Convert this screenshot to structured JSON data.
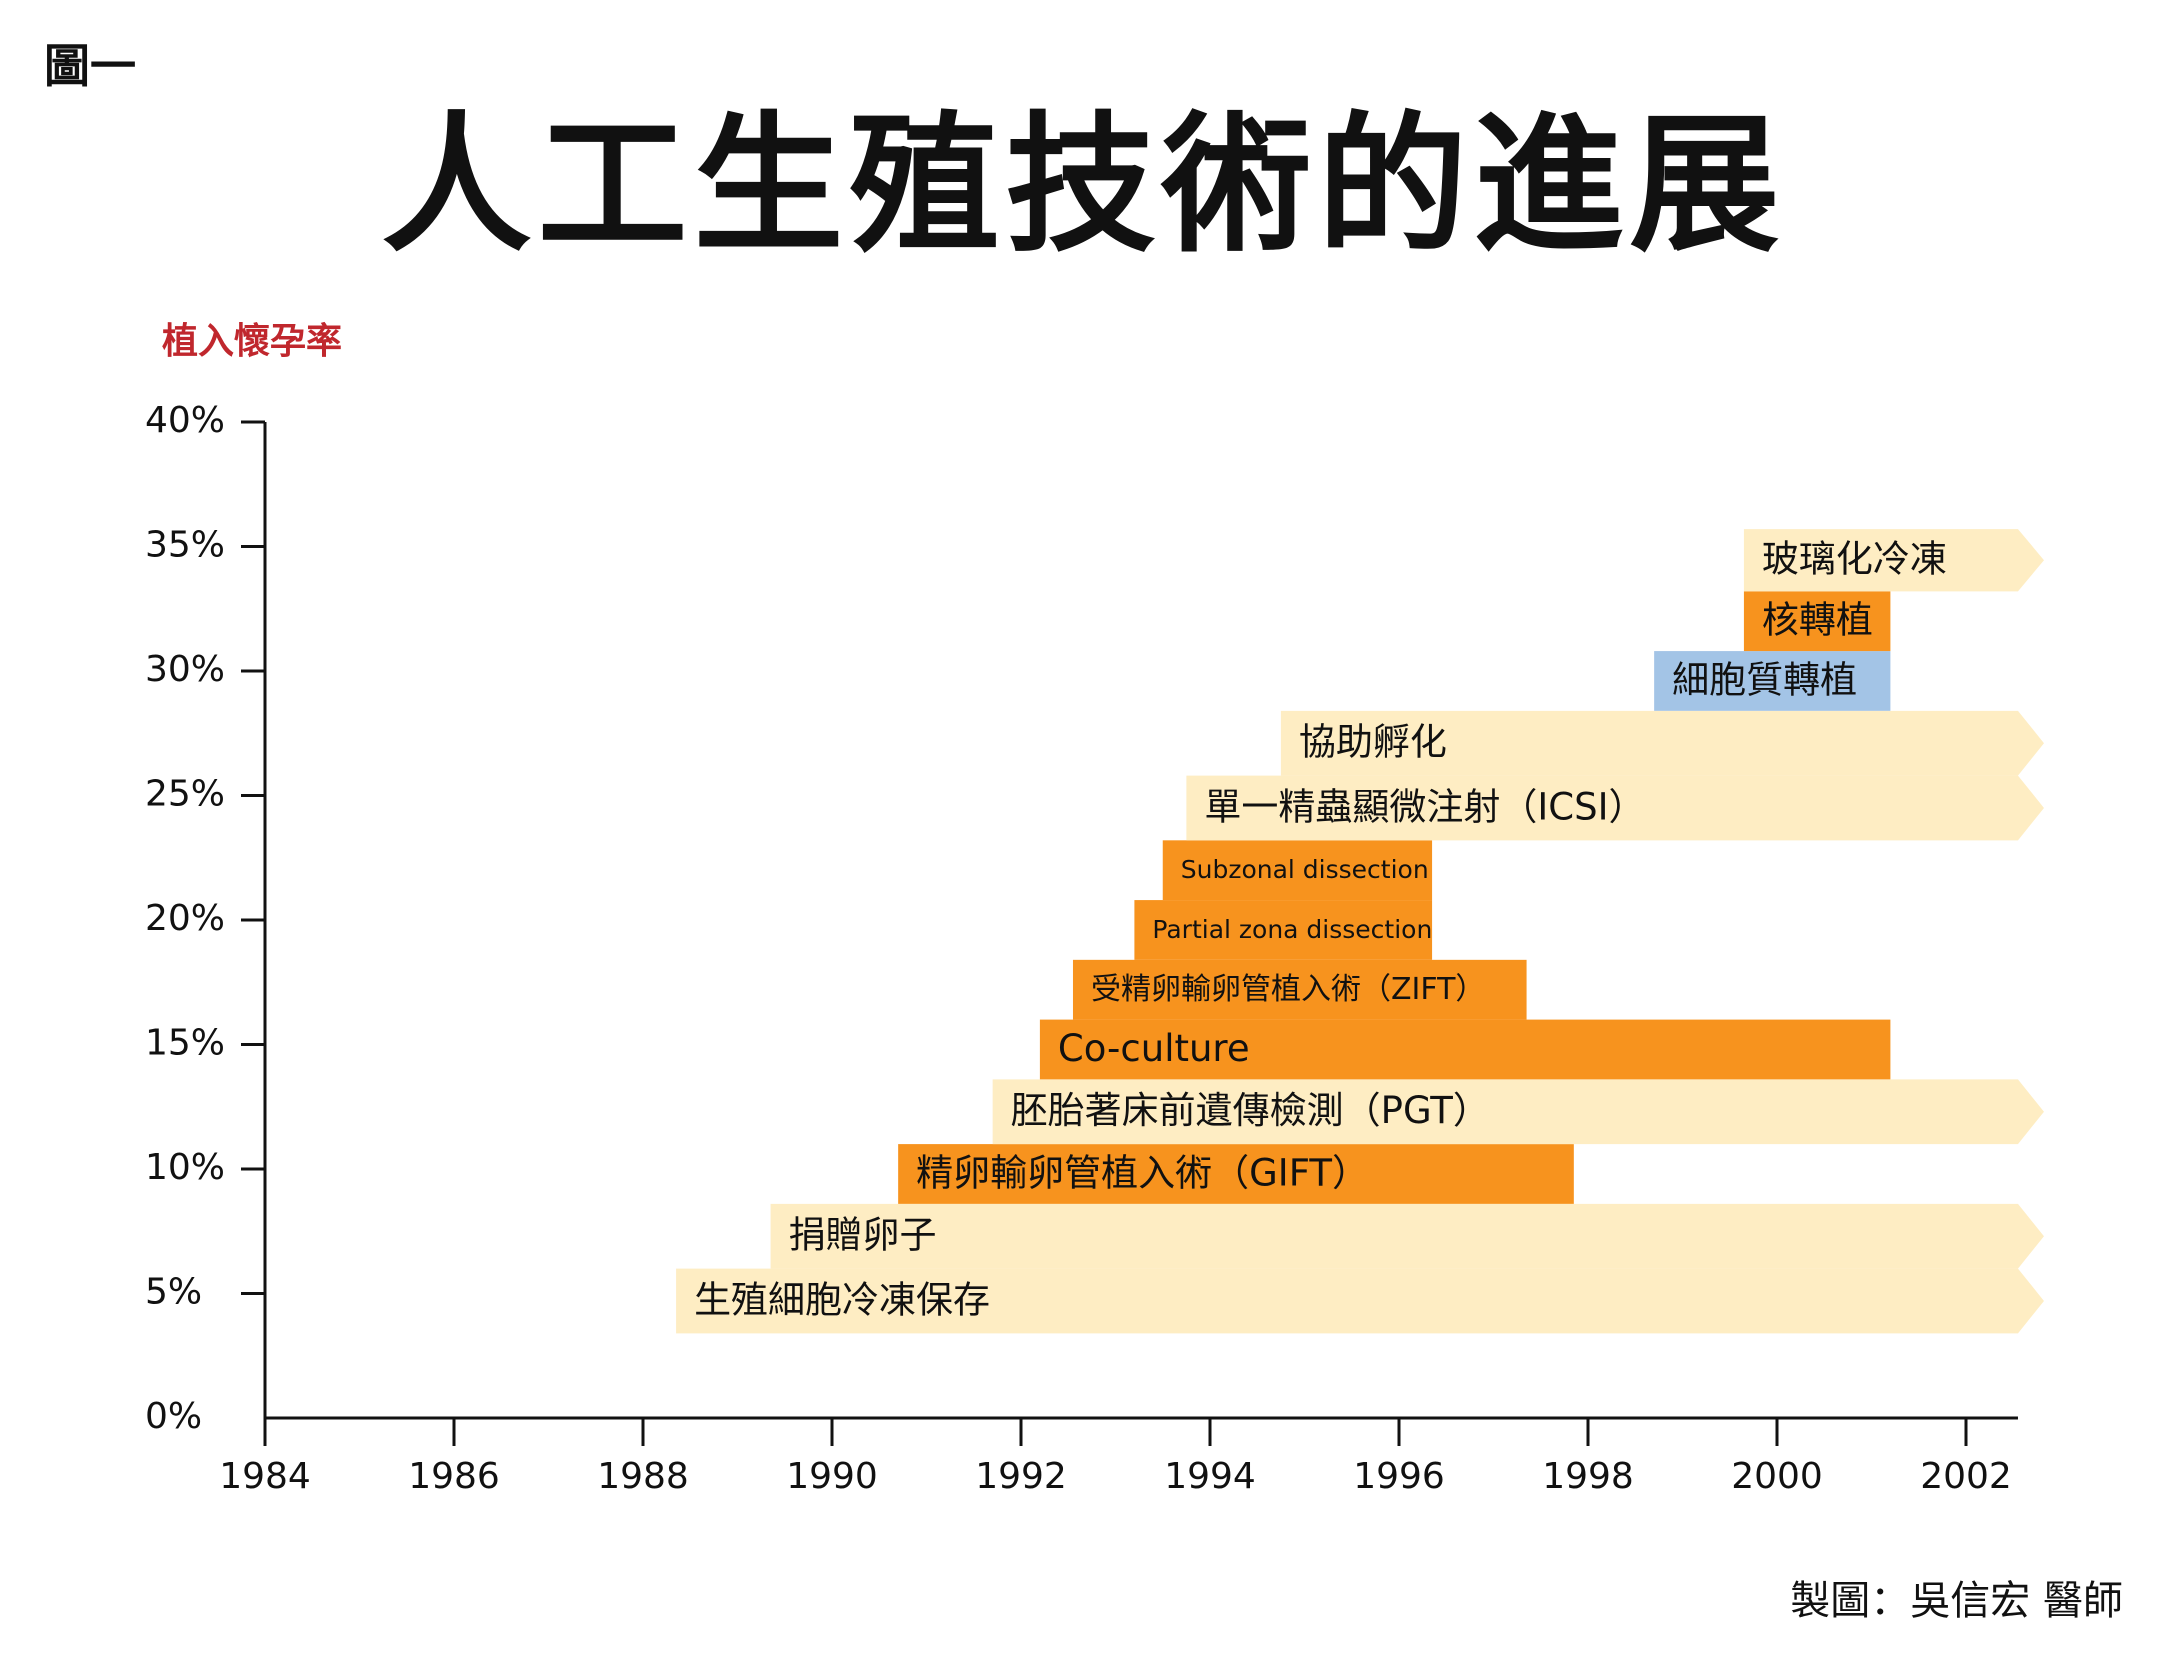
{
  "figure_label": "圖一",
  "credit": "製圖：吳信宏 醫師",
  "colors": {
    "light": "#feedc3",
    "orange": "#f7931e",
    "blue": "#a3c4e6",
    "title_red": "#c0272d",
    "axis": "#111111"
  },
  "chart_data": {
    "type": "timeline-bar",
    "title": "人工生殖技術的進展",
    "ylabel": "植入懷孕率",
    "xlabel": "",
    "xlim": [
      1984,
      2002.55
    ],
    "ylim": [
      0,
      40
    ],
    "x_ticks": [
      1984,
      1986,
      1988,
      1990,
      1992,
      1994,
      1996,
      1998,
      2000,
      2002
    ],
    "x_tick_labels": [
      "1984",
      "1986",
      "1988",
      "1990",
      "1992",
      "1994",
      "1996",
      "1998",
      "2000",
      "2002"
    ],
    "y_ticks": [
      0,
      5,
      10,
      15,
      20,
      25,
      30,
      35,
      40
    ],
    "y_tick_labels": [
      "0%",
      "5%",
      "10%",
      "15%",
      "20%",
      "25%",
      "30%",
      "35%",
      "40%"
    ],
    "grid": false,
    "legend": "none",
    "bars": [
      {
        "label": "生殖細胞冷凍保存",
        "start": 1988.35,
        "end": 2002.55,
        "y_low": 3.4,
        "y_high": 6.0,
        "color": "light",
        "ongoing": true,
        "label_size": "large"
      },
      {
        "label": "捐贈卵子",
        "start": 1989.35,
        "end": 2002.55,
        "y_low": 6.0,
        "y_high": 8.6,
        "color": "light",
        "ongoing": true,
        "label_size": "large"
      },
      {
        "label": "精卵輸卵管植入術（GIFT）",
        "start": 1990.7,
        "end": 1997.85,
        "y_low": 8.6,
        "y_high": 11.0,
        "color": "orange",
        "ongoing": false,
        "label_size": "large"
      },
      {
        "label": "胚胎著床前遺傳檢測（PGT）",
        "start": 1991.7,
        "end": 2002.55,
        "y_low": 11.0,
        "y_high": 13.6,
        "color": "light",
        "ongoing": true,
        "label_size": "large"
      },
      {
        "label": "Co-culture",
        "start": 1992.2,
        "end": 2001.2,
        "y_low": 13.6,
        "y_high": 16.0,
        "color": "orange",
        "ongoing": false,
        "label_size": "large"
      },
      {
        "label": "受精卵輸卵管植入術（ZIFT）",
        "start": 1992.55,
        "end": 1997.35,
        "y_low": 16.0,
        "y_high": 18.4,
        "color": "orange",
        "ongoing": false,
        "label_size": "medium"
      },
      {
        "label": "Partial zona dissection",
        "start": 1993.2,
        "end": 1996.35,
        "y_low": 18.4,
        "y_high": 20.8,
        "color": "orange",
        "ongoing": false,
        "label_size": "small"
      },
      {
        "label": "Subzonal dissection",
        "start": 1993.5,
        "end": 1996.35,
        "y_low": 20.8,
        "y_high": 23.2,
        "color": "orange",
        "ongoing": false,
        "label_size": "small"
      },
      {
        "label": "單一精蟲顯微注射（ICSI）",
        "start": 1993.75,
        "end": 2002.55,
        "y_low": 23.2,
        "y_high": 25.8,
        "color": "light",
        "ongoing": true,
        "label_size": "large"
      },
      {
        "label": "協助孵化",
        "start": 1994.75,
        "end": 2002.55,
        "y_low": 25.8,
        "y_high": 28.4,
        "color": "light",
        "ongoing": true,
        "label_size": "large"
      },
      {
        "label": "細胞質轉植",
        "start": 1998.7,
        "end": 2001.2,
        "y_low": 28.4,
        "y_high": 30.8,
        "color": "blue",
        "ongoing": false,
        "label_size": "large"
      },
      {
        "label": "核轉植",
        "start": 1999.65,
        "end": 2001.2,
        "y_low": 30.8,
        "y_high": 33.2,
        "color": "orange",
        "ongoing": false,
        "label_size": "large"
      },
      {
        "label": "玻璃化冷凍",
        "start": 1999.65,
        "end": 2002.55,
        "y_low": 33.2,
        "y_high": 35.7,
        "color": "light",
        "ongoing": true,
        "label_size": "large"
      }
    ]
  }
}
